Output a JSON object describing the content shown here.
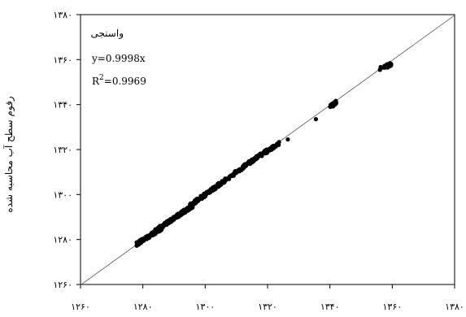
{
  "chart_data": {
    "type": "scatter",
    "title": "",
    "xlabel": "",
    "ylabel": "رقوم سطح آب محاسبه شده",
    "xlim": [
      1260,
      1380
    ],
    "ylim": [
      1260,
      1380
    ],
    "x_ticks": [
      1260,
      1280,
      1300,
      1320,
      1340,
      1360,
      1380
    ],
    "y_ticks": [
      1260,
      1280,
      1300,
      1320,
      1340,
      1360,
      1380
    ],
    "x_tick_labels": [
      "۱۲۶۰",
      "۱۲۸۰",
      "۱۳۰۰",
      "۱۳۲۰",
      "۱۳۴۰",
      "۱۳۶۰",
      "۱۳۸۰"
    ],
    "y_tick_labels": [
      "۱۲۶۰",
      "۱۲۸۰",
      "۱۳۰۰",
      "۱۳۲۰",
      "۱۳۴۰",
      "۱۳۶۰",
      "۱۳۸۰"
    ],
    "grid": false,
    "legend": "none",
    "annotation": {
      "label": "واسنجی",
      "equation": "y=0.9998x",
      "r2_prefix": "R",
      "r2_sup": "2",
      "r2_value": "=0.9969"
    },
    "fit_line": {
      "slope": 0.9998,
      "from": 1260,
      "to": 1380
    },
    "clusters": [
      {
        "x_range": [
          1278,
          1286
        ],
        "y_range": [
          1278,
          1285
        ],
        "points": 140
      },
      {
        "x_range": [
          1284,
          1296
        ],
        "y_range": [
          1284,
          1295
        ],
        "points": 160
      },
      {
        "x_range": [
          1295,
          1305
        ],
        "y_range": [
          1295,
          1305
        ],
        "points": 110
      },
      {
        "x_range": [
          1305,
          1316
        ],
        "y_range": [
          1305,
          1316
        ],
        "points": 90
      },
      {
        "x_range": [
          1316,
          1324
        ],
        "y_range": [
          1316,
          1323
        ],
        "points": 50
      },
      {
        "x_range": [
          1340,
          1342
        ],
        "y_range": [
          1339,
          1341
        ],
        "points": 40
      },
      {
        "x_range": [
          1356,
          1360
        ],
        "y_range": [
          1356,
          1358
        ],
        "points": 30
      }
    ],
    "points": [
      {
        "x": 1326.5,
        "y": 1324.5
      },
      {
        "x": 1335.5,
        "y": 1333.5
      }
    ],
    "colors": {
      "markers": "#000000",
      "fit_line": "#555555",
      "frame": "#000000"
    }
  }
}
